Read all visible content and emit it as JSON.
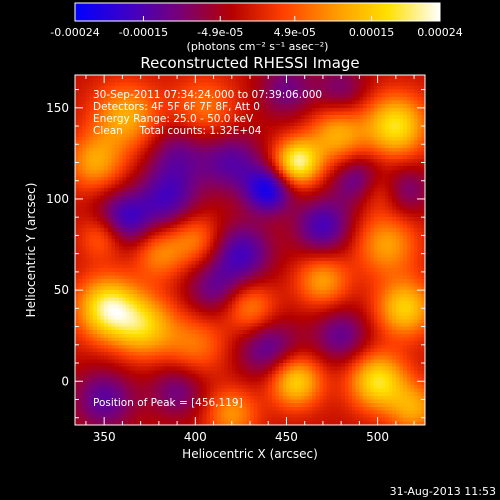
{
  "colorbar": {
    "tick_labels": [
      "-0.00024",
      "-0.00015",
      "-4.9e-05",
      "4.9e-05",
      "0.00015",
      "0.00024"
    ],
    "tick_values": [
      -0.00024,
      -0.00015,
      -4.9e-05,
      4.9e-05,
      0.00015,
      0.00024
    ],
    "range": [
      -0.00024,
      0.00024
    ],
    "units_label": "(photons cm⁻² s⁻¹ asec⁻²)",
    "colormap": [
      "#0000ff",
      "#3c00c8",
      "#780078",
      "#b40000",
      "#ff4000",
      "#ff9a00",
      "#ffe000",
      "#ffffff"
    ]
  },
  "chart_data": {
    "type": "heatmap",
    "title": "Reconstructed RHESSI Image",
    "xlabel": "Heliocentric X (arcsec)",
    "ylabel": "Heliocentric Y (arcsec)",
    "xlim": [
      334,
      526
    ],
    "ylim": [
      -24,
      168
    ],
    "xticks": [
      350,
      400,
      450,
      500
    ],
    "yticks": [
      0,
      50,
      100,
      150
    ],
    "annotations": [
      "30-Sep-2011 07:34:24.000 to 07:39:06.000",
      "Detectors: 4F 5F 6F 7F 8F, Att 0",
      "Energy Range: 25.0 - 50.0 keV",
      "Clean     Total counts: 1.32E+04"
    ],
    "peak_label": "Position of Peak = [456,119]",
    "peak_position": [
      456,
      119
    ],
    "sources": [
      {
        "x": 456,
        "y": 120,
        "amp": 1.0,
        "sigma": 9
      },
      {
        "x": 478,
        "y": 135,
        "amp": 0.6,
        "sigma": 11
      },
      {
        "x": 352,
        "y": 40,
        "amp": 0.95,
        "sigma": 12
      },
      {
        "x": 372,
        "y": 30,
        "amp": 0.7,
        "sigma": 12
      },
      {
        "x": 362,
        "y": 145,
        "amp": 0.6,
        "sigma": 13
      },
      {
        "x": 345,
        "y": 120,
        "amp": 0.55,
        "sigma": 11
      },
      {
        "x": 405,
        "y": 150,
        "amp": 0.4,
        "sigma": 12
      },
      {
        "x": 510,
        "y": 140,
        "amp": 0.85,
        "sigma": 12
      },
      {
        "x": 505,
        "y": 75,
        "amp": 0.55,
        "sigma": 12
      },
      {
        "x": 515,
        "y": 40,
        "amp": 0.75,
        "sigma": 11
      },
      {
        "x": 500,
        "y": 0,
        "amp": 0.85,
        "sigma": 11
      },
      {
        "x": 455,
        "y": 0,
        "amp": 0.8,
        "sigma": 10
      },
      {
        "x": 470,
        "y": 55,
        "amp": 0.55,
        "sigma": 10
      },
      {
        "x": 430,
        "y": 40,
        "amp": 0.5,
        "sigma": 10
      },
      {
        "x": 400,
        "y": 20,
        "amp": 0.4,
        "sigma": 12
      },
      {
        "x": 400,
        "y": 78,
        "amp": 0.45,
        "sigma": 10
      },
      {
        "x": 380,
        "y": 70,
        "amp": 0.45,
        "sigma": 10
      },
      {
        "x": 350,
        "y": 80,
        "amp": 0.5,
        "sigma": 9
      },
      {
        "x": 420,
        "y": -18,
        "amp": 0.5,
        "sigma": 10
      },
      {
        "x": 520,
        "y": -15,
        "amp": 0.55,
        "sigma": 10
      },
      {
        "x": 500,
        "y": 105,
        "amp": 0.4,
        "sigma": 9
      },
      {
        "x": 360,
        "y": 88,
        "amp": -0.7,
        "sigma": 11
      },
      {
        "x": 385,
        "y": 100,
        "amp": -0.55,
        "sigma": 12
      },
      {
        "x": 440,
        "y": 105,
        "amp": -0.8,
        "sigma": 9
      },
      {
        "x": 420,
        "y": 120,
        "amp": -0.5,
        "sigma": 12
      },
      {
        "x": 390,
        "y": 125,
        "amp": -0.4,
        "sigma": 12
      },
      {
        "x": 490,
        "y": 110,
        "amp": -0.55,
        "sigma": 10
      },
      {
        "x": 425,
        "y": 70,
        "amp": -0.6,
        "sigma": 12
      },
      {
        "x": 470,
        "y": 85,
        "amp": -0.6,
        "sigma": 11
      },
      {
        "x": 515,
        "y": 105,
        "amp": -0.4,
        "sigma": 10
      },
      {
        "x": 440,
        "y": 18,
        "amp": -0.5,
        "sigma": 12
      },
      {
        "x": 410,
        "y": 50,
        "amp": -0.4,
        "sigma": 11
      },
      {
        "x": 480,
        "y": 25,
        "amp": -0.45,
        "sigma": 11
      },
      {
        "x": 350,
        "y": -10,
        "amp": -0.5,
        "sigma": 12
      },
      {
        "x": 390,
        "y": -5,
        "amp": -0.4,
        "sigma": 11
      },
      {
        "x": 450,
        "y": 160,
        "amp": -0.4,
        "sigma": 11
      },
      {
        "x": 480,
        "y": 160,
        "amp": -0.35,
        "sigma": 10
      }
    ]
  },
  "footer": {
    "timestamp": "31-Aug-2013 11:53"
  }
}
